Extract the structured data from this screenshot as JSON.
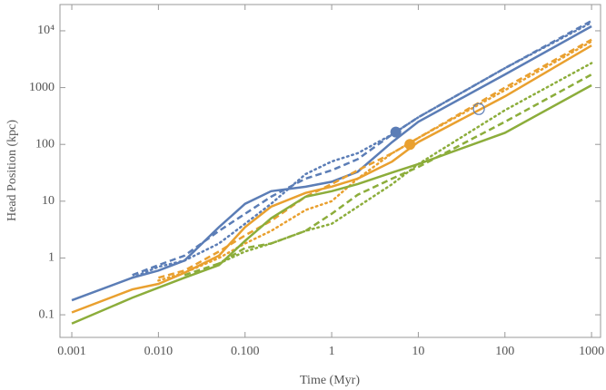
{
  "chart_data": {
    "type": "line",
    "xlabel": "Time (Myr)",
    "ylabel": "Head Position (kpc)",
    "xlog": true,
    "ylog": true,
    "xlim": [
      0.00073,
      1270
    ],
    "ylim": [
      0.04,
      29000
    ],
    "xticks": [
      0.001,
      {
        "value": 0.01,
        "label": "0.010"
      },
      {
        "value": 0.1,
        "label": "0.100"
      },
      1,
      10,
      100,
      1000
    ],
    "yticks": [
      0.1,
      1,
      10,
      100,
      1000,
      {
        "value": 10000,
        "label": "10⁴"
      }
    ],
    "x": [
      0.001,
      0.005,
      0.01,
      0.02,
      0.05,
      0.1,
      0.2,
      0.5,
      1,
      2,
      5,
      10,
      100,
      1000
    ],
    "series": [
      {
        "color": "#5b7db6",
        "dash": "solid",
        "values": [
          0.18,
          0.45,
          0.6,
          0.9,
          3.5,
          9,
          15,
          18,
          22,
          33,
          110,
          250,
          1700,
          12000
        ]
      },
      {
        "color": "#5b7db6",
        "dash": "dashed",
        "values": [
          null,
          0.5,
          0.75,
          1.1,
          3,
          6,
          12,
          25,
          35,
          55,
          150,
          300,
          2200,
          15000
        ]
      },
      {
        "color": "#5b7db6",
        "dash": "dotted",
        "values": [
          null,
          0.45,
          0.7,
          0.9,
          1.8,
          4,
          9,
          30,
          50,
          70,
          150,
          300,
          2200,
          14000
        ]
      },
      {
        "color": "#e9a02f",
        "dash": "solid",
        "values": [
          0.11,
          0.28,
          0.35,
          0.55,
          1.1,
          3.5,
          8,
          14,
          18,
          25,
          50,
          110,
          700,
          5500
        ]
      },
      {
        "color": "#e9a02f",
        "dash": "dashed",
        "values": [
          null,
          null,
          0.45,
          0.6,
          1.3,
          2.5,
          4.5,
          12,
          20,
          35,
          70,
          130,
          1000,
          7000
        ]
      },
      {
        "color": "#e9a02f",
        "dash": "dotted",
        "values": [
          null,
          null,
          0.4,
          0.55,
          1.0,
          1.8,
          3,
          7,
          10,
          25,
          70,
          130,
          900,
          6500
        ]
      },
      {
        "color": "#8cad3b",
        "dash": "solid",
        "values": [
          0.07,
          0.2,
          0.3,
          0.45,
          0.75,
          2,
          5,
          12,
          15,
          20,
          32,
          45,
          160,
          1100
        ]
      },
      {
        "color": "#8cad3b",
        "dash": "dashed",
        "values": [
          null,
          null,
          null,
          0.5,
          0.8,
          1.5,
          1.8,
          3,
          6,
          13,
          25,
          40,
          250,
          1700
        ]
      },
      {
        "color": "#8cad3b",
        "dash": "dotted",
        "values": [
          null,
          null,
          null,
          null,
          0.8,
          1.3,
          1.8,
          3,
          4,
          8,
          20,
          45,
          400,
          2700
        ]
      }
    ],
    "points": [
      {
        "x": 5.5,
        "y": 165,
        "color": "#5b7db6",
        "filled": true
      },
      {
        "x": 8,
        "y": 100,
        "color": "#e9a02f",
        "filled": true
      },
      {
        "x": 50,
        "y": 420,
        "color": "#5b7db6",
        "filled": false
      }
    ]
  }
}
